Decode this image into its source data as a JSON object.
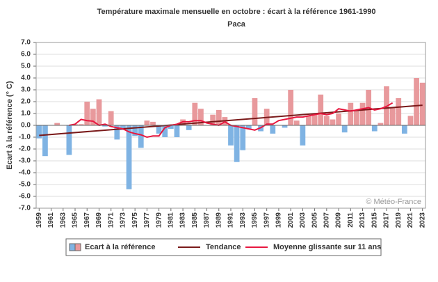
{
  "chart_data": {
    "type": "bar",
    "title": "Température maximale mensuelle en octobre : écart à la référence 1961-1990",
    "subtitle": "Paca",
    "ylabel": "Ecart à la référence (° C)",
    "annotation": "© Météo-France",
    "xlim": [
      1958.5,
      2023.5
    ],
    "xticks": [
      1959,
      1961,
      1963,
      1965,
      1967,
      1969,
      1971,
      1973,
      1975,
      1977,
      1979,
      1981,
      1983,
      1985,
      1987,
      1989,
      1991,
      1993,
      1995,
      1997,
      1999,
      2001,
      2003,
      2005,
      2007,
      2009,
      2011,
      2013,
      2015,
      2017,
      2019,
      2021,
      2023
    ],
    "ylim": [
      -7,
      7
    ],
    "yticks": [
      {
        "value": 7,
        "label": "7.0"
      },
      {
        "value": 6,
        "label": "6.0"
      },
      {
        "value": 5,
        "label": "5.0"
      },
      {
        "value": 4,
        "label": "4.0"
      },
      {
        "value": 3,
        "label": "3.0"
      },
      {
        "value": 2,
        "label": "2.0"
      },
      {
        "value": 1,
        "label": "1.0"
      },
      {
        "value": 0,
        "label": "0.0"
      },
      {
        "value": -1,
        "label": "-1.0"
      },
      {
        "value": -2,
        "label": "-2.0"
      },
      {
        "value": -3,
        "label": "-3.0"
      },
      {
        "value": -4,
        "label": "-4.0"
      },
      {
        "value": -5,
        "label": "-5.0"
      },
      {
        "value": -6,
        "label": "-6.0"
      },
      {
        "value": -7,
        "label": "-7.0"
      }
    ],
    "grid": true,
    "series": [
      {
        "name": "Ecart à la référence",
        "type": "bar",
        "color": "#e8999c",
        "negative_color": "#7fb3e3",
        "x": [
          1959,
          1960,
          1961,
          1962,
          1963,
          1964,
          1965,
          1966,
          1967,
          1968,
          1969,
          1970,
          1971,
          1972,
          1973,
          1974,
          1975,
          1976,
          1977,
          1978,
          1979,
          1980,
          1981,
          1982,
          1983,
          1984,
          1985,
          1986,
          1987,
          1988,
          1989,
          1990,
          1991,
          1992,
          1993,
          1994,
          1995,
          1996,
          1997,
          1998,
          1999,
          2000,
          2001,
          2002,
          2003,
          2004,
          2005,
          2006,
          2007,
          2008,
          2009,
          2010,
          2011,
          2012,
          2013,
          2014,
          2015,
          2016,
          2017,
          2018,
          2019,
          2020,
          2021,
          2022,
          2023
        ],
        "values": [
          -1.1,
          -2.6,
          0.0,
          0.2,
          0.0,
          -2.5,
          0.1,
          0.1,
          2.0,
          1.4,
          2.2,
          -0.1,
          1.2,
          -1.2,
          -0.4,
          -5.4,
          -0.9,
          -1.9,
          0.4,
          0.3,
          -0.7,
          -1.0,
          -0.3,
          -1.0,
          0.5,
          -0.4,
          1.9,
          1.4,
          0.0,
          0.9,
          1.3,
          0.7,
          -1.7,
          -3.1,
          -2.1,
          -0.3,
          2.3,
          -0.5,
          1.4,
          -0.7,
          0.0,
          -0.2,
          3.0,
          0.4,
          -1.7,
          0.8,
          1.0,
          2.6,
          0.8,
          0.5,
          1.0,
          -0.6,
          1.9,
          1.3,
          1.9,
          3.0,
          -0.5,
          0.2,
          3.3,
          1.5,
          2.3,
          -0.7,
          0.8,
          4.0,
          3.6
        ]
      },
      {
        "name": "Tendance",
        "type": "line",
        "color": "#7a1a1a",
        "x": [
          1959,
          2023
        ],
        "values": [
          -0.85,
          1.7
        ]
      },
      {
        "name": "Moyenne glissante sur 11 ans",
        "type": "line",
        "color": "#e8173f",
        "x": [
          1964,
          1965,
          1966,
          1967,
          1968,
          1969,
          1970,
          1971,
          1972,
          1973,
          1974,
          1975,
          1976,
          1977,
          1978,
          1979,
          1980,
          1981,
          1982,
          1983,
          1984,
          1985,
          1986,
          1987,
          1988,
          1989,
          1990,
          1991,
          1992,
          1993,
          1994,
          1995,
          1996,
          1997,
          1998,
          1999,
          2000,
          2001,
          2002,
          2003,
          2004,
          2005,
          2006,
          2007,
          2008,
          2009,
          2010,
          2011,
          2012,
          2013,
          2014,
          2015,
          2016,
          2017,
          2018
        ],
        "values": [
          0.0,
          0.1,
          0.5,
          0.4,
          0.35,
          0.0,
          0.1,
          -0.1,
          -0.2,
          -0.3,
          -0.55,
          -0.7,
          -0.8,
          -1.0,
          -0.9,
          -0.9,
          -0.2,
          0.0,
          0.1,
          0.3,
          0.3,
          0.4,
          0.4,
          0.2,
          0.1,
          0.0,
          0.3,
          0.0,
          -0.1,
          -0.2,
          -0.3,
          -0.4,
          -0.2,
          0.1,
          0.1,
          0.4,
          0.5,
          0.6,
          0.7,
          0.7,
          0.8,
          0.9,
          1.0,
          0.9,
          1.0,
          1.4,
          1.3,
          1.2,
          1.3,
          1.4,
          1.5,
          1.3,
          1.4,
          1.6,
          1.9
        ]
      }
    ]
  }
}
